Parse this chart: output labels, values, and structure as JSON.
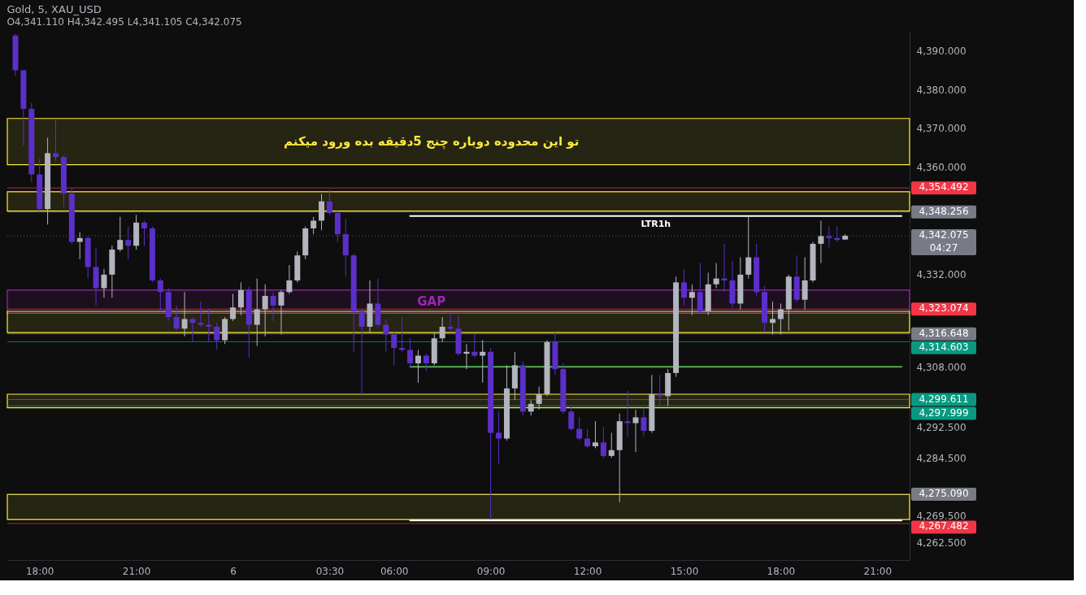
{
  "chart_data": {
    "type": "candlestick",
    "title": "Gold, 5, XAU_USD",
    "subtitle": "O4,341.110 H4,342.495 L4,341.105 C4,342.075",
    "categories": [
      null,
      null,
      null,
      "18:00",
      null,
      null,
      null,
      null,
      null,
      null,
      null,
      null,
      null,
      null,
      null,
      "21:00",
      null,
      null,
      null,
      null,
      null,
      null,
      null,
      null,
      null,
      null,
      null,
      "6",
      null,
      null,
      null,
      null,
      null,
      null,
      null,
      null,
      null,
      null,
      null,
      "03:30",
      null,
      null,
      null,
      null,
      null,
      null,
      null,
      "06:00",
      null,
      null,
      null,
      null,
      null,
      null,
      null,
      null,
      null,
      null,
      null,
      "09:00",
      null,
      null,
      null,
      null,
      null,
      null,
      null,
      null,
      null,
      null,
      null,
      "12:00",
      null,
      null,
      null,
      null,
      null,
      null,
      null,
      null,
      null,
      null,
      null,
      "15:00",
      null,
      null,
      null,
      null,
      null,
      null,
      null,
      null,
      null,
      null,
      null,
      "18:00",
      null,
      null,
      null,
      null,
      null,
      null,
      null,
      null,
      null,
      null,
      null,
      "21:00",
      null,
      null,
      null
    ],
    "ohlc": [
      [
        4394,
        4394.5,
        4383.5,
        4385
      ],
      [
        4385,
        4385,
        4365.5,
        4375
      ],
      [
        4375,
        4376.5,
        4356,
        4358
      ],
      [
        4358,
        4362,
        4348.5,
        4349
      ],
      [
        4349,
        4367.5,
        4345,
        4363.5
      ],
      [
        4363.5,
        4372.5,
        4361.5,
        4362.5
      ],
      [
        4362.5,
        4363,
        4349.5,
        4353
      ],
      [
        4353,
        4354.5,
        4340,
        4340.5
      ],
      [
        4340.5,
        4343,
        4336,
        4341.5
      ],
      [
        4341.5,
        4342,
        4331,
        4334
      ],
      [
        4334,
        4339,
        4324,
        4328.5
      ],
      [
        4328.5,
        4333.5,
        4326,
        4332
      ],
      [
        4332,
        4339.5,
        4326,
        4338.5
      ],
      [
        4338.5,
        4347,
        4338,
        4341
      ],
      [
        4341,
        4344.5,
        4336,
        4339.5
      ],
      [
        4339.5,
        4347.5,
        4338.5,
        4345.5
      ],
      [
        4345.5,
        4346,
        4339.5,
        4344
      ],
      [
        4344,
        4344.5,
        4330,
        4330.5
      ],
      [
        4330.5,
        4331,
        4322.5,
        4327.5
      ],
      [
        4327.5,
        4328.5,
        4320,
        4321
      ],
      [
        4321,
        4324,
        4317.5,
        4318
      ],
      [
        4318,
        4327.5,
        4316,
        4320.5
      ],
      [
        4320.5,
        4321,
        4314.5,
        4319.5
      ],
      [
        4319.5,
        4325,
        4318.5,
        4319
      ],
      [
        4319,
        4323,
        4314.5,
        4318.5
      ],
      [
        4318.5,
        4319.5,
        4312.5,
        4315
      ],
      [
        4315,
        4321,
        4314,
        4320.5
      ],
      [
        4320.5,
        4327,
        4320,
        4323.5
      ],
      [
        4323.5,
        4330,
        4321.5,
        4328
      ],
      [
        4328,
        4329,
        4310.5,
        4319
      ],
      [
        4319,
        4331,
        4313.5,
        4323
      ],
      [
        4323,
        4329.5,
        4316,
        4326.5
      ],
      [
        4326.5,
        4327.5,
        4320,
        4324
      ],
      [
        4324,
        4328,
        4316.5,
        4327.5
      ],
      [
        4327.5,
        4334.5,
        4327,
        4330.5
      ],
      [
        4330.5,
        4338,
        4330,
        4337
      ],
      [
        4337,
        4344.5,
        4336,
        4344
      ],
      [
        4344,
        4347,
        4342.5,
        4346
      ],
      [
        4346,
        4353,
        4343.5,
        4351
      ],
      [
        4351,
        4354,
        4347.5,
        4348
      ],
      [
        4348,
        4348.5,
        4340.5,
        4342.5
      ],
      [
        4342.5,
        4346.5,
        4331.5,
        4337
      ],
      [
        4337,
        4337.5,
        4312,
        4322.5
      ],
      [
        4322.5,
        4323,
        4300.5,
        4318.5
      ],
      [
        4318.5,
        4330.5,
        4317,
        4324.5
      ],
      [
        4324.5,
        4331,
        4318.5,
        4319
      ],
      [
        4319,
        4320.5,
        4312,
        4316.5
      ],
      [
        4316.5,
        4317,
        4308.5,
        4313
      ],
      [
        4313,
        4321,
        4312,
        4312.5
      ],
      [
        4312.5,
        4315.5,
        4308,
        4309
      ],
      [
        4309,
        4312.5,
        4304,
        4311
      ],
      [
        4311,
        4311.5,
        4307,
        4309
      ],
      [
        4309,
        4317,
        4308.5,
        4315.5
      ],
      [
        4315.5,
        4321,
        4314.5,
        4318.5
      ],
      [
        4318.5,
        4322,
        4317.5,
        4318
      ],
      [
        4318,
        4321.5,
        4311,
        4311.5
      ],
      [
        4311.5,
        4314,
        4307.5,
        4312
      ],
      [
        4312,
        4316.5,
        4310.5,
        4311
      ],
      [
        4311,
        4315,
        4304,
        4312
      ],
      [
        4312,
        4313,
        4268.5,
        4291
      ],
      [
        4291,
        4296.5,
        4283,
        4289.5
      ],
      [
        4289.5,
        4308.5,
        4289,
        4302.5
      ],
      [
        4302.5,
        4312,
        4299.5,
        4308.5
      ],
      [
        4308.5,
        4309.5,
        4295.5,
        4296.5
      ],
      [
        4296.5,
        4299.5,
        4295.5,
        4298.5
      ],
      [
        4298.5,
        4303,
        4297,
        4301
      ],
      [
        4301,
        4315,
        4300.5,
        4314.5
      ],
      [
        4314.5,
        4317,
        4306,
        4307.5
      ],
      [
        4307.5,
        4309,
        4296,
        4296.5
      ],
      [
        4296.5,
        4298,
        4291.5,
        4292
      ],
      [
        4292,
        4295,
        4289,
        4289.5
      ],
      [
        4289.5,
        4292,
        4287,
        4287.5
      ],
      [
        4287.5,
        4294,
        4287,
        4288.5
      ],
      [
        4288.5,
        4292.5,
        4284.5,
        4285
      ],
      [
        4285,
        4291,
        4284.5,
        4286.5
      ],
      [
        4286.5,
        4296,
        4273,
        4294
      ],
      [
        4294,
        4302,
        4290,
        4293.5
      ],
      [
        4293.5,
        4297,
        4286,
        4295
      ],
      [
        4295,
        4297.5,
        4290,
        4291.5
      ],
      [
        4291.5,
        4306,
        4291,
        4301
      ],
      [
        4301,
        4306,
        4298,
        4300.5
      ],
      [
        4300.5,
        4307.5,
        4298,
        4306.5
      ],
      [
        4306.5,
        4331.5,
        4305.5,
        4330
      ],
      [
        4330,
        4333.5,
        4324,
        4326
      ],
      [
        4326,
        4329.5,
        4321.5,
        4327.5
      ],
      [
        4327.5,
        4335,
        4322,
        4322.5
      ],
      [
        4322.5,
        4332.5,
        4321.5,
        4329.5
      ],
      [
        4329.5,
        4335,
        4328.5,
        4331
      ],
      [
        4331,
        4340,
        4327.5,
        4330.5
      ],
      [
        4330.5,
        4335.5,
        4323.5,
        4324.5
      ],
      [
        4324.5,
        4336.5,
        4323,
        4332
      ],
      [
        4332,
        4347,
        4331,
        4336.5
      ],
      [
        4336.5,
        4340,
        4326.5,
        4327.5
      ],
      [
        4327.5,
        4329,
        4317,
        4319.5
      ],
      [
        4319.5,
        4325,
        4316.5,
        4320.5
      ],
      [
        4320.5,
        4324.5,
        4316.5,
        4323
      ],
      [
        4323,
        4332,
        4317.5,
        4331.5
      ],
      [
        4331.5,
        4337,
        4325,
        4325.5
      ],
      [
        4325.5,
        4336.5,
        4323,
        4330.5
      ],
      [
        4330.5,
        4340.5,
        4330,
        4340
      ],
      [
        4340,
        4346,
        4335,
        4342
      ],
      [
        4342,
        4344.5,
        4339,
        4341.5
      ],
      [
        4341.5,
        4344.5,
        4340.5,
        4341
      ],
      [
        4341.11,
        4342.495,
        4341.105,
        4342.075
      ],
      null,
      null,
      null,
      null,
      null,
      null,
      null
    ],
    "colors": [
      "#5b2fc9",
      "#5b2fc9",
      "#5b2fc9",
      "#5b2fc9",
      "#b2b5be",
      "#5b2fc9",
      "#5b2fc9",
      "#5b2fc9",
      "#b2b5be",
      "#5b2fc9",
      "#5b2fc9",
      "#b2b5be",
      "#b2b5be",
      "#b2b5be",
      "#5b2fc9",
      "#b2b5be",
      "#5b2fc9",
      "#5b2fc9",
      "#5b2fc9",
      "#5b2fc9",
      "#5b2fc9",
      "#b2b5be",
      "#5b2fc9",
      "#5b2fc9",
      "#5b2fc9",
      "#5b2fc9",
      "#b2b5be",
      "#b2b5be",
      "#b2b5be",
      "#5b2fc9",
      "#b2b5be",
      "#b2b5be",
      "#5b2fc9",
      "#b2b5be",
      "#b2b5be",
      "#b2b5be",
      "#b2b5be",
      "#b2b5be",
      "#b2b5be",
      "#5b2fc9",
      "#5b2fc9",
      "#5b2fc9",
      "#5b2fc9",
      "#5b2fc9",
      "#b2b5be",
      "#5b2fc9",
      "#5b2fc9",
      "#5b2fc9",
      "#5b2fc9",
      "#5b2fc9",
      "#b2b5be",
      "#5b2fc9",
      "#b2b5be",
      "#b2b5be",
      "#5b2fc9",
      "#5b2fc9",
      "#b2b5be",
      "#5b2fc9",
      "#b2b5be",
      "#5b2fc9",
      "#5b2fc9",
      "#b2b5be",
      "#b2b5be",
      "#5b2fc9",
      "#b2b5be",
      "#b2b5be",
      "#b2b5be",
      "#5b2fc9",
      "#5b2fc9",
      "#5b2fc9",
      "#5b2fc9",
      "#5b2fc9",
      "#b2b5be",
      "#5b2fc9",
      "#b2b5be",
      "#b2b5be",
      "#5b2fc9",
      "#b2b5be",
      "#5b2fc9",
      "#b2b5be",
      "#5b2fc9",
      "#b2b5be",
      "#b2b5be",
      "#5b2fc9",
      "#b2b5be",
      "#5b2fc9",
      "#b2b5be",
      "#b2b5be",
      "#5b2fc9",
      "#5b2fc9",
      "#b2b5be",
      "#b2b5be",
      "#5b2fc9",
      "#5b2fc9",
      "#b2b5be",
      "#b2b5be",
      "#b2b5be",
      "#5b2fc9",
      "#b2b5be",
      "#b2b5be",
      "#b2b5be",
      "#5b2fc9",
      "#5b2fc9",
      "#b2b5be",
      null,
      null,
      null,
      null,
      null,
      null,
      null
    ],
    "series": [
      {
        "type": "line",
        "name": "LTR1h",
        "color": "#ffffff",
        "values": [
          null,
          null,
          null,
          null,
          null,
          null,
          null,
          null,
          null,
          null,
          null,
          null,
          null,
          null,
          null,
          null,
          null,
          null,
          null,
          null,
          null,
          null,
          null,
          null,
          null,
          null,
          null,
          null,
          null,
          null,
          null,
          null,
          null,
          null,
          null,
          null,
          null,
          null,
          null,
          null,
          null,
          null,
          null,
          null,
          null,
          null,
          null,
          null,
          null,
          4347.2,
          4347.2,
          4347.2,
          4347.2,
          4347.2,
          4347.2,
          4347.2,
          4347.2,
          4347.2,
          4347.2,
          4347.2,
          4347.2,
          4347.2,
          4347.2,
          4347.2,
          4347.2,
          4347.2,
          4347.2,
          4347.2,
          4347.2,
          4347.2,
          4347.2,
          4347.2,
          4347.2,
          4347.2,
          4347.2,
          4347.2,
          4347.2,
          4347.2,
          4347.2,
          4347.2,
          4347.2,
          4347.2,
          4347.2,
          4347.2,
          4347.2,
          4347.2,
          4347.2,
          4347.2,
          4347.2,
          4347.2,
          4347.2,
          4347.2,
          4347.2,
          4347.2,
          4347.2,
          4347.2,
          4347.2,
          4347.2,
          4347.2,
          4347.2,
          4347.2,
          4347.2,
          4347.2,
          4347.2,
          4347.2,
          4347.2,
          4347.2,
          4347.2,
          4347.2,
          4347.2,
          4347.2
        ]
      },
      {
        "type": "line",
        "color": "#4caf50",
        "values": [
          null,
          null,
          null,
          null,
          null,
          null,
          null,
          null,
          null,
          null,
          null,
          null,
          null,
          null,
          null,
          null,
          null,
          null,
          null,
          null,
          null,
          null,
          null,
          null,
          null,
          null,
          null,
          null,
          null,
          null,
          null,
          null,
          null,
          null,
          null,
          null,
          null,
          null,
          null,
          null,
          null,
          null,
          null,
          null,
          null,
          null,
          null,
          null,
          null,
          4308.1,
          4308.1,
          4308.1,
          4308.1,
          4308.1,
          4308.1,
          4308.1,
          4308.1,
          4308.1,
          4308.1,
          4308.1,
          4308.1,
          4308.1,
          4308.1,
          4308.1,
          4308.1,
          4308.1,
          4308.1,
          4308.1,
          4308.1,
          4308.1,
          4308.1,
          4308.1,
          4308.1,
          4308.1,
          4308.1,
          4308.1,
          4308.1,
          4308.1,
          4308.1,
          4308.1,
          4308.1,
          4308.1,
          4308.1,
          4308.1,
          4308.1,
          4308.1,
          4308.1,
          4308.1,
          4308.1,
          4308.1,
          4308.1,
          4308.1,
          4308.1,
          4308.1,
          4308.1,
          4308.1,
          4308.1,
          4308.1,
          4308.1,
          4308.1,
          4308.1,
          4308.1,
          4308.1,
          4308.1,
          4308.1,
          4308.1,
          4308.1,
          4308.1,
          4308.1,
          4308.1,
          4308.1
        ]
      },
      {
        "type": "line",
        "color": "#ffffff",
        "values": [
          null,
          null,
          null,
          null,
          null,
          null,
          null,
          null,
          null,
          null,
          null,
          null,
          null,
          null,
          null,
          null,
          null,
          null,
          null,
          null,
          null,
          null,
          null,
          null,
          null,
          null,
          null,
          null,
          null,
          null,
          null,
          null,
          null,
          null,
          null,
          null,
          null,
          null,
          null,
          null,
          null,
          null,
          null,
          null,
          null,
          null,
          null,
          null,
          null,
          4268.3,
          4268.3,
          4268.3,
          4268.3,
          4268.3,
          4268.3,
          4268.3,
          4268.3,
          4268.3,
          4268.3,
          4268.3,
          4268.3,
          4268.3,
          4268.3,
          4268.3,
          4268.3,
          4268.3,
          4268.3,
          4268.3,
          4268.3,
          4268.3,
          4268.3,
          4268.3,
          4268.3,
          4268.3,
          4268.3,
          4268.3,
          4268.3,
          4268.3,
          4268.3,
          4268.3,
          4268.3,
          4268.3,
          4268.3,
          4268.3,
          4268.3,
          4268.3,
          4268.3,
          4268.3,
          4268.3,
          4268.3,
          4268.3,
          4268.3,
          4268.3,
          4268.3,
          4268.3,
          4268.3,
          4268.3,
          4268.3,
          4268.3,
          4268.3,
          4268.3,
          4268.3,
          4268.3,
          4268.3,
          4268.3,
          4268.3,
          4268.3,
          4268.3,
          4268.3,
          4268.3,
          4268.3
        ]
      }
    ],
    "ylim": [
      4258,
      4395
    ],
    "yticks": [
      {
        "value": 4390,
        "label": "4,390.000"
      },
      {
        "value": 4380,
        "label": "4,380.000"
      },
      {
        "value": 4370,
        "label": "4,370.000"
      },
      {
        "value": 4360,
        "label": "4,360.000"
      },
      {
        "value": 4332,
        "label": "4,332.000"
      },
      {
        "value": 4308,
        "label": "4,308.000"
      },
      {
        "value": 4292.5,
        "label": "4,292.500"
      },
      {
        "value": 4284.5,
        "label": "4,284.500"
      },
      {
        "value": 4269.5,
        "label": "4,269.500"
      },
      {
        "value": 4262.5,
        "label": "4,262.500"
      }
    ],
    "bands": [
      {
        "axis": "y",
        "from": 4360.5,
        "to": 4372.5,
        "label": "تو این محدوده دوباره چنج 5دقیقه بده ورود میکنم",
        "color": "#ffeb3b"
      },
      {
        "axis": "y",
        "from": 4348.5,
        "to": 4353.5,
        "color": "#ffeb3b"
      },
      {
        "axis": "y",
        "from": 4322,
        "to": 4328,
        "label": "GAP",
        "color": "#9c27b0"
      },
      {
        "axis": "y",
        "from": 4317,
        "to": 4322.5,
        "color": "#ffeb3b"
      },
      {
        "axis": "y",
        "from": 4297.5,
        "to": 4301,
        "color": "#ffeb3b"
      },
      {
        "axis": "y",
        "from": 4268.5,
        "to": 4275,
        "color": "#ffeb3b"
      }
    ],
    "ref_lines": [
      {
        "axis": "y",
        "value": 4354.492,
        "label": "4,354.492",
        "color": "#f23645"
      },
      {
        "axis": "y",
        "value": 4348.256,
        "label": "4,348.256",
        "color": "#787b86"
      },
      {
        "axis": "y",
        "value": 4342.075,
        "label": "4,342.075\n04:27",
        "color": "#787b86",
        "line_style": "dotted"
      },
      {
        "axis": "y",
        "value": 4323.074,
        "label": "4,323.074",
        "color": "#f23645"
      },
      {
        "axis": "y",
        "value": 4316.648,
        "label": "4,316.648",
        "color": "#787b86"
      },
      {
        "axis": "y",
        "value": 4314.603,
        "label": "4,314.603",
        "color": "#089981"
      },
      {
        "axis": "y",
        "value": 4299.611,
        "label": "4,299.611",
        "color": "#089981"
      },
      {
        "axis": "y",
        "value": 4297.999,
        "label": "4,297.999",
        "color": "#089981"
      },
      {
        "axis": "y",
        "value": 4275.09,
        "label": "4,275.090",
        "color": "#787b86"
      },
      {
        "axis": "y",
        "value": 4267.482,
        "label": "4,267.482",
        "color": "#f23645"
      }
    ],
    "grid": false
  }
}
